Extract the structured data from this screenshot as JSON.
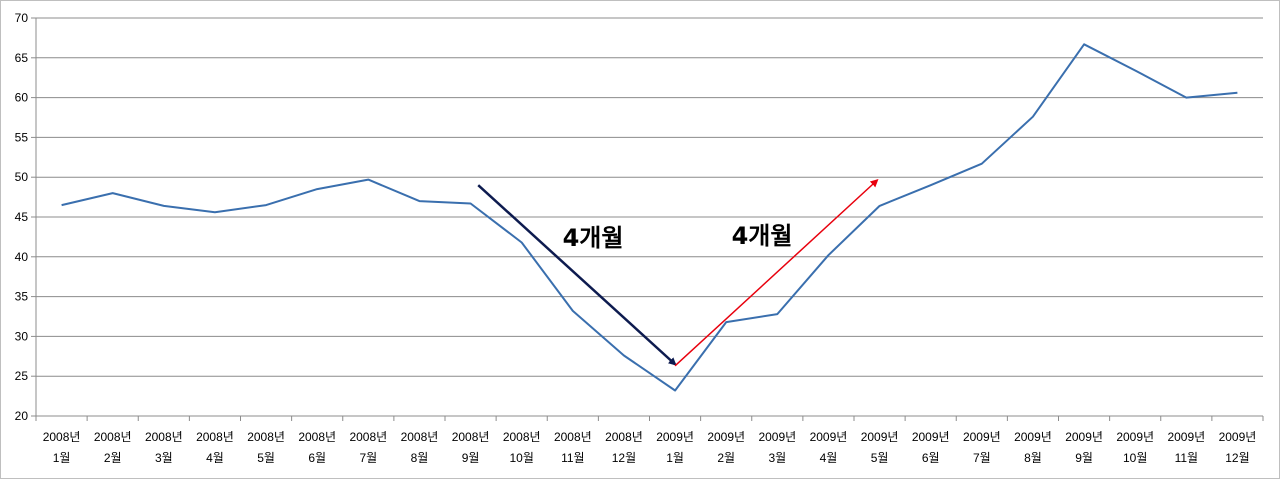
{
  "chart_data": {
    "type": "line",
    "title": "",
    "xlabel": "",
    "ylabel": "",
    "ylim": [
      20,
      70
    ],
    "yticks": [
      20,
      25,
      30,
      35,
      40,
      45,
      50,
      55,
      60,
      65,
      70
    ],
    "grid": "horizontal",
    "categories": [
      {
        "year": "2008년",
        "month": "1월"
      },
      {
        "year": "2008년",
        "month": "2월"
      },
      {
        "year": "2008년",
        "month": "3월"
      },
      {
        "year": "2008년",
        "month": "4월"
      },
      {
        "year": "2008년",
        "month": "5월"
      },
      {
        "year": "2008년",
        "month": "6월"
      },
      {
        "year": "2008년",
        "month": "7월"
      },
      {
        "year": "2008년",
        "month": "8월"
      },
      {
        "year": "2008년",
        "month": "9월"
      },
      {
        "year": "2008년",
        "month": "10월"
      },
      {
        "year": "2008년",
        "month": "11월"
      },
      {
        "year": "2008년",
        "month": "12월"
      },
      {
        "year": "2009년",
        "month": "1월"
      },
      {
        "year": "2009년",
        "month": "2월"
      },
      {
        "year": "2009년",
        "month": "3월"
      },
      {
        "year": "2009년",
        "month": "4월"
      },
      {
        "year": "2009년",
        "month": "5월"
      },
      {
        "year": "2009년",
        "month": "6월"
      },
      {
        "year": "2009년",
        "month": "7월"
      },
      {
        "year": "2009년",
        "month": "8월"
      },
      {
        "year": "2009년",
        "month": "9월"
      },
      {
        "year": "2009년",
        "month": "10월"
      },
      {
        "year": "2009년",
        "month": "11월"
      },
      {
        "year": "2009년",
        "month": "12월"
      }
    ],
    "series": [
      {
        "color": "#3a6fae",
        "values": [
          46.5,
          48.0,
          46.4,
          45.6,
          46.5,
          48.5,
          49.7,
          47.0,
          46.7,
          41.8,
          33.2,
          27.6,
          23.2,
          31.8,
          32.8,
          40.2,
          46.4,
          49.0,
          51.7,
          57.6,
          66.7,
          63.4,
          60.0,
          60.6
        ]
      }
    ],
    "annotations": [
      {
        "text": "4개월",
        "color": "#0d1b4f",
        "arrow_from": {
          "x": 8.15,
          "y": 49.0
        },
        "arrow_to": {
          "x": 12.0,
          "y": 26.5
        }
      },
      {
        "text": "4개월",
        "color": "#e8000d",
        "arrow_from": {
          "x": 12.0,
          "y": 26.3
        },
        "arrow_to": {
          "x": 15.95,
          "y": 49.6
        }
      }
    ]
  }
}
